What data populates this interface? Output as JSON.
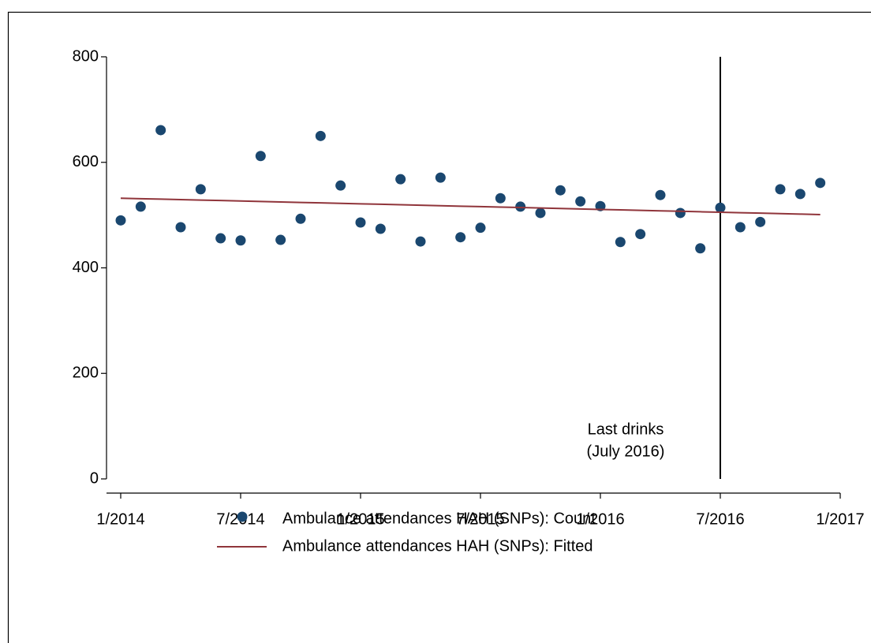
{
  "chart_data": {
    "type": "scatter",
    "x": [
      "2014-01",
      "2014-02",
      "2014-03",
      "2014-04",
      "2014-05",
      "2014-06",
      "2014-07",
      "2014-08",
      "2014-09",
      "2014-10",
      "2014-11",
      "2014-12",
      "2015-01",
      "2015-02",
      "2015-03",
      "2015-04",
      "2015-05",
      "2015-06",
      "2015-07",
      "2015-08",
      "2015-09",
      "2015-10",
      "2015-11",
      "2015-12",
      "2016-01",
      "2016-02",
      "2016-03",
      "2016-04",
      "2016-05",
      "2016-06",
      "2016-07",
      "2016-08",
      "2016-09",
      "2016-10",
      "2016-11",
      "2016-12"
    ],
    "series": [
      {
        "name": "Ambulance attendances HAH (SNPs): Count",
        "type": "scatter",
        "color": "#1a476f",
        "values": [
          490,
          516,
          661,
          477,
          549,
          456,
          452,
          612,
          453,
          493,
          650,
          556,
          486,
          474,
          568,
          450,
          571,
          458,
          476,
          532,
          516,
          504,
          547,
          526,
          517,
          449,
          464,
          538,
          504,
          437,
          514,
          477,
          487,
          549,
          540,
          561
        ]
      },
      {
        "name": "Ambulance attendances HAH (SNPs): Fitted",
        "type": "line",
        "color": "#90353b",
        "values": [
          532,
          531.1,
          530.2,
          529.3,
          528.5,
          527.6,
          526.7,
          525.8,
          524.9,
          524.0,
          523.1,
          522.3,
          521.4,
          520.5,
          519.6,
          518.7,
          517.8,
          516.9,
          516.1,
          515.2,
          514.3,
          513.4,
          512.5,
          511.6,
          510.7,
          509.9,
          509.0,
          508.1,
          507.2,
          506.3,
          505.4,
          504.5,
          503.7,
          502.8,
          501.9,
          501.0
        ]
      }
    ],
    "xlim": [
      "2014-01",
      "2017-01"
    ],
    "xticks": [
      {
        "value": "2014-01",
        "label": "1/2014"
      },
      {
        "value": "2014-07",
        "label": "7/2014"
      },
      {
        "value": "2015-01",
        "label": "1/2015"
      },
      {
        "value": "2015-07",
        "label": "7/2015"
      },
      {
        "value": "2016-01",
        "label": "1/2016"
      },
      {
        "value": "2016-07",
        "label": "7/2016"
      },
      {
        "value": "2017-01",
        "label": "1/2017"
      }
    ],
    "ylim": [
      0,
      800
    ],
    "yticks": [
      0,
      200,
      400,
      600,
      800
    ],
    "grid": false,
    "annotation": {
      "x": "2016-07",
      "text": [
        "Last drinks",
        "(July 2016)"
      ]
    }
  }
}
